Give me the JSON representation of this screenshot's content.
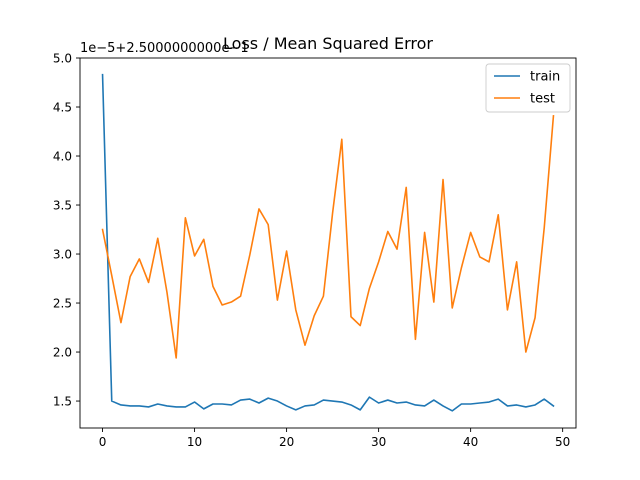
{
  "chart_data": {
    "type": "line",
    "title": "Loss / Mean Squared Error",
    "offset_label": "1e−5+2.5000000000e−1",
    "xlabel": "",
    "ylabel": "",
    "xlim": [
      -2.45,
      51.45
    ],
    "ylim": [
      1.225,
      5.0
    ],
    "xticks": [
      0,
      10,
      20,
      30,
      40,
      50
    ],
    "xtick_labels": [
      "0",
      "10",
      "20",
      "30",
      "40",
      "50"
    ],
    "yticks": [
      1.5,
      2.0,
      2.5,
      3.0,
      3.5,
      4.0,
      4.5,
      5.0
    ],
    "ytick_labels": [
      "1.5",
      "2.0",
      "2.5",
      "3.0",
      "3.5",
      "4.0",
      "4.5",
      "5.0"
    ],
    "legend_position": "top-right",
    "grid": false,
    "x": [
      0,
      1,
      2,
      3,
      4,
      5,
      6,
      7,
      8,
      9,
      10,
      11,
      12,
      13,
      14,
      15,
      16,
      17,
      18,
      19,
      20,
      21,
      22,
      23,
      24,
      25,
      26,
      27,
      28,
      29,
      30,
      31,
      32,
      33,
      34,
      35,
      36,
      37,
      38,
      39,
      40,
      41,
      42,
      43,
      44,
      45,
      46,
      47,
      48,
      49
    ],
    "series": [
      {
        "name": "train",
        "color": "#1f77b4",
        "values": [
          4.83,
          1.5,
          1.46,
          1.45,
          1.45,
          1.44,
          1.47,
          1.45,
          1.44,
          1.44,
          1.49,
          1.42,
          1.47,
          1.47,
          1.46,
          1.51,
          1.52,
          1.48,
          1.53,
          1.5,
          1.45,
          1.41,
          1.45,
          1.46,
          1.51,
          1.5,
          1.49,
          1.46,
          1.41,
          1.54,
          1.48,
          1.51,
          1.48,
          1.49,
          1.46,
          1.45,
          1.51,
          1.45,
          1.4,
          1.47,
          1.47,
          1.48,
          1.49,
          1.52,
          1.45,
          1.46,
          1.44,
          1.46,
          1.52,
          1.45
        ]
      },
      {
        "name": "test",
        "color": "#ff7f0e",
        "values": [
          3.25,
          2.78,
          2.3,
          2.77,
          2.95,
          2.71,
          3.16,
          2.61,
          1.94,
          3.37,
          2.98,
          3.15,
          2.67,
          2.48,
          2.51,
          2.57,
          2.99,
          3.46,
          3.3,
          2.53,
          3.03,
          2.43,
          2.07,
          2.37,
          2.57,
          3.42,
          4.17,
          2.36,
          2.27,
          2.65,
          2.92,
          3.23,
          3.05,
          3.68,
          2.13,
          3.22,
          2.51,
          3.76,
          2.45,
          2.86,
          3.22,
          2.97,
          2.92,
          3.4,
          2.43,
          2.92,
          2.0,
          2.35,
          3.27,
          4.41
        ]
      }
    ]
  }
}
